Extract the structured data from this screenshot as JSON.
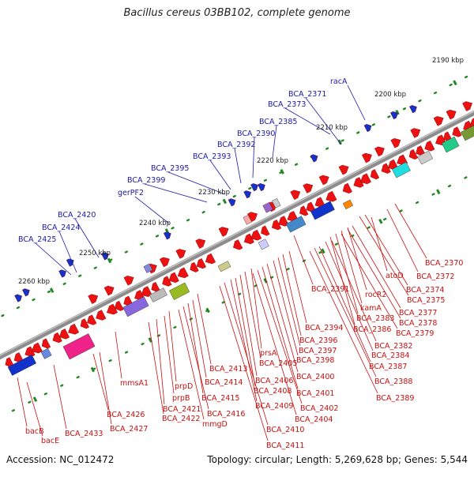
{
  "title": "Bacillus cereus 03BB102, complete genome",
  "footer": {
    "accession": "Accession: NC_012472",
    "summary": "Topology: circular; Length: 5,269,628 bp; Genes: 5,544"
  },
  "colors": {
    "backbone": "#8c8c8c",
    "tick": "#228822",
    "top_label": "#1a1aa6",
    "bottom_label": "#c81010",
    "gene_red": "#ee1111",
    "gene_blue": "#1133cc"
  },
  "ticks": [
    {
      "label": "2190 kbp"
    },
    {
      "label": "2200 kbp"
    },
    {
      "label": "2210 kbp"
    },
    {
      "label": "2220 kbp"
    },
    {
      "label": "2230 kbp"
    },
    {
      "label": "2240 kbp"
    },
    {
      "label": "2250 kbp"
    },
    {
      "label": "2260 kbp"
    }
  ],
  "top_labels": [
    {
      "text": "racA"
    },
    {
      "text": "BCA_2371"
    },
    {
      "text": "BCA_2373"
    },
    {
      "text": "BCA_2385"
    },
    {
      "text": "BCA_2390"
    },
    {
      "text": "BCA_2392"
    },
    {
      "text": "BCA_2393"
    },
    {
      "text": "BCA_2395"
    },
    {
      "text": "BCA_2399"
    },
    {
      "text": "gerPF2"
    },
    {
      "text": "BCA_2420"
    },
    {
      "text": "BCA_2424"
    },
    {
      "text": "BCA_2425"
    }
  ],
  "bottom_labels": [
    {
      "text": "BCA_2370"
    },
    {
      "text": "BCA_2372"
    },
    {
      "text": "atoD"
    },
    {
      "text": "BCA_2374"
    },
    {
      "text": "BCA_2375"
    },
    {
      "text": "BCA_2391"
    },
    {
      "text": "rocR2"
    },
    {
      "text": "BCA_2377"
    },
    {
      "text": "kamA"
    },
    {
      "text": "BCA_2378"
    },
    {
      "text": "BCA_2383"
    },
    {
      "text": "BCA_2379"
    },
    {
      "text": "BCA_2386"
    },
    {
      "text": "BCA_2394"
    },
    {
      "text": "BCA_2396"
    },
    {
      "text": "BCA_2382"
    },
    {
      "text": "prsA"
    },
    {
      "text": "BCA_2397"
    },
    {
      "text": "BCA_2384"
    },
    {
      "text": "BCA_2398"
    },
    {
      "text": "BCA_2405"
    },
    {
      "text": "BCA_2387"
    },
    {
      "text": "BCA_2413"
    },
    {
      "text": "BCA_2400"
    },
    {
      "text": "mmsA1"
    },
    {
      "text": "BCA_2414"
    },
    {
      "text": "BCA_2406"
    },
    {
      "text": "BCA_2388"
    },
    {
      "text": "prpD"
    },
    {
      "text": "BCA_2408"
    },
    {
      "text": "BCA_2401"
    },
    {
      "text": "prpB"
    },
    {
      "text": "BCA_2415"
    },
    {
      "text": "BCA_2389"
    },
    {
      "text": "BCA_2421"
    },
    {
      "text": "BCA_2409"
    },
    {
      "text": "BCA_2402"
    },
    {
      "text": "BCA_2426"
    },
    {
      "text": "BCA_2416"
    },
    {
      "text": "BCA_2422"
    },
    {
      "text": "BCA_2404"
    },
    {
      "text": "mmgD"
    },
    {
      "text": "BCA_2427"
    },
    {
      "text": "BCA_2410"
    },
    {
      "text": "bacB"
    },
    {
      "text": "BCA_2433"
    },
    {
      "text": "bacE"
    },
    {
      "text": "BCA_2411"
    }
  ]
}
